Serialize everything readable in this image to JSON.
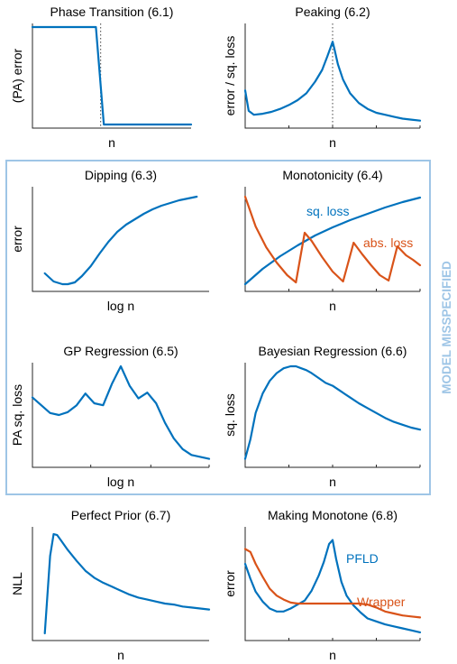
{
  "colors": {
    "blue": "#0072bd",
    "orange": "#d95319",
    "box": "#9ec5e6"
  },
  "box_label": "MODEL MISSPECIFIED",
  "chart_data": [
    {
      "id": "p61",
      "type": "line",
      "title": "Phase Transition (6.1)",
      "xlabel": "n",
      "ylabel": "(PA) error",
      "xlim": [
        0,
        100
      ],
      "ylim": [
        0,
        100
      ],
      "xticks": [],
      "vline": 43,
      "series": [
        {
          "color": "blue",
          "x": [
            0,
            40,
            45,
            100
          ],
          "y": [
            100,
            100,
            0,
            0
          ]
        }
      ]
    },
    {
      "id": "p62",
      "type": "line",
      "title": "Peaking (6.2)",
      "xlabel": "n",
      "ylabel": "error / sq. loss",
      "xlim": [
        0,
        100
      ],
      "ylim": [
        0,
        100
      ],
      "xticks": [
        25,
        50,
        75,
        100
      ],
      "vline": 50,
      "series": [
        {
          "color": "blue",
          "x": [
            0,
            2,
            5,
            10,
            15,
            20,
            25,
            30,
            35,
            40,
            44,
            47,
            49,
            50,
            51,
            53,
            56,
            60,
            65,
            70,
            75,
            80,
            85,
            90,
            95,
            100
          ],
          "y": [
            35,
            14,
            10,
            11,
            13,
            16,
            20,
            25,
            32,
            44,
            56,
            70,
            80,
            85,
            78,
            62,
            46,
            32,
            22,
            16,
            12,
            10,
            8,
            6,
            5,
            4
          ]
        }
      ]
    },
    {
      "id": "p63",
      "type": "line",
      "title": "Dipping (6.3)",
      "xlabel": "log n",
      "ylabel": "error",
      "xlim": [
        0,
        100
      ],
      "ylim": [
        0,
        100
      ],
      "xticks": [],
      "vline": null,
      "series": [
        {
          "color": "blue",
          "x": [
            7,
            12,
            17,
            20,
            24,
            28,
            33,
            38,
            43,
            48,
            53,
            58,
            63,
            68,
            73,
            78,
            83,
            88,
            93
          ],
          "y": [
            12,
            3,
            0,
            0,
            2,
            9,
            20,
            34,
            47,
            58,
            66,
            72,
            78,
            83,
            87,
            90,
            93,
            95,
            97
          ]
        }
      ]
    },
    {
      "id": "p64",
      "type": "line",
      "title": "Monotonicity (6.4)",
      "xlabel": "n",
      "ylabel": "",
      "xlim": [
        0,
        100
      ],
      "ylim": [
        0,
        100
      ],
      "xticks": [
        25,
        50,
        75,
        100
      ],
      "vline": null,
      "series": [
        {
          "name": "sq. loss",
          "color": "blue",
          "x": [
            0,
            10,
            20,
            30,
            40,
            50,
            60,
            70,
            80,
            90,
            100
          ],
          "y": [
            0,
            17,
            31,
            43,
            54,
            63,
            71,
            78,
            85,
            91,
            96
          ]
        },
        {
          "name": "abs. loss",
          "color": "orange",
          "x": [
            0,
            6,
            12,
            18,
            24,
            29,
            34,
            38,
            44,
            50,
            56,
            62,
            67,
            72,
            77,
            82,
            87,
            92,
            96,
            100
          ],
          "y": [
            97,
            64,
            41,
            24,
            10,
            2,
            57,
            48,
            30,
            14,
            3,
            46,
            33,
            21,
            10,
            4,
            42,
            32,
            27,
            21
          ]
        }
      ]
    },
    {
      "id": "p65",
      "type": "line",
      "title": "GP Regression (6.5)",
      "xlabel": "log n",
      "ylabel": "PA sq. loss",
      "xlim": [
        0,
        100
      ],
      "ylim": [
        0,
        100
      ],
      "xticks": [
        33,
        67,
        100
      ],
      "vline": null,
      "series": [
        {
          "color": "blue",
          "x": [
            0,
            5,
            10,
            15,
            20,
            25,
            30,
            35,
            40,
            45,
            50,
            55,
            60,
            65,
            70,
            75,
            80,
            85,
            90,
            95,
            100
          ],
          "y": [
            68,
            60,
            52,
            50,
            53,
            60,
            72,
            62,
            60,
            82,
            100,
            80,
            67,
            73,
            62,
            42,
            26,
            15,
            9,
            7,
            5
          ]
        }
      ]
    },
    {
      "id": "p66",
      "type": "line",
      "title": "Bayesian Regression (6.6)",
      "xlabel": "n",
      "ylabel": "sq. loss",
      "xlim": [
        0,
        100
      ],
      "ylim": [
        0,
        100
      ],
      "xticks": [
        25,
        50,
        75,
        100
      ],
      "vline": null,
      "series": [
        {
          "color": "blue",
          "x": [
            0,
            3,
            6,
            10,
            14,
            18,
            22,
            26,
            29,
            32,
            35,
            38,
            42,
            46,
            50,
            55,
            60,
            65,
            70,
            75,
            80,
            85,
            90,
            95,
            100
          ],
          "y": [
            5,
            25,
            52,
            72,
            85,
            93,
            98,
            100,
            100,
            98,
            96,
            93,
            88,
            83,
            80,
            74,
            68,
            62,
            57,
            52,
            47,
            43,
            40,
            37,
            35
          ]
        }
      ]
    },
    {
      "id": "p67",
      "type": "line",
      "title": "Perfect Prior (6.7)",
      "xlabel": "n",
      "ylabel": "NLL",
      "xlim": [
        0,
        100
      ],
      "ylim": [
        0,
        100
      ],
      "xticks": [],
      "vline": null,
      "series": [
        {
          "color": "blue",
          "x": [
            7,
            10,
            12,
            14,
            16,
            20,
            25,
            30,
            35,
            40,
            45,
            50,
            55,
            60,
            65,
            70,
            75,
            80,
            85,
            90,
            95,
            100
          ],
          "y": [
            0,
            78,
            100,
            99,
            94,
            84,
            73,
            63,
            56,
            51,
            47,
            43,
            39,
            36,
            34,
            32,
            30,
            29,
            27,
            26,
            25,
            24
          ]
        }
      ]
    },
    {
      "id": "p68",
      "type": "line",
      "title": "Making Monotone (6.8)",
      "xlabel": "n",
      "ylabel": "error",
      "xlim": [
        0,
        100
      ],
      "ylim": [
        0,
        100
      ],
      "xticks": [
        25,
        50,
        75,
        100
      ],
      "vline": null,
      "series": [
        {
          "name": "PFLD",
          "color": "blue",
          "x": [
            0,
            3,
            6,
            10,
            14,
            18,
            22,
            26,
            30,
            34,
            38,
            42,
            45,
            48,
            50,
            52,
            55,
            58,
            62,
            66,
            70,
            75,
            80,
            85,
            90,
            95,
            100
          ],
          "y": [
            70,
            55,
            42,
            32,
            25,
            22,
            22,
            25,
            29,
            33,
            43,
            58,
            72,
            90,
            94,
            75,
            52,
            38,
            28,
            21,
            15,
            12,
            9,
            7,
            5,
            3,
            1
          ]
        },
        {
          "name": "Wrapper",
          "color": "orange",
          "x": [
            0,
            3,
            6,
            10,
            14,
            18,
            22,
            26,
            30,
            40,
            50,
            60,
            65,
            70,
            75,
            80,
            85,
            90,
            95,
            100
          ],
          "y": [
            85,
            82,
            70,
            57,
            45,
            38,
            34,
            31,
            30,
            30,
            30,
            30,
            30,
            29,
            26,
            22,
            20,
            18,
            17,
            16
          ]
        }
      ]
    }
  ]
}
